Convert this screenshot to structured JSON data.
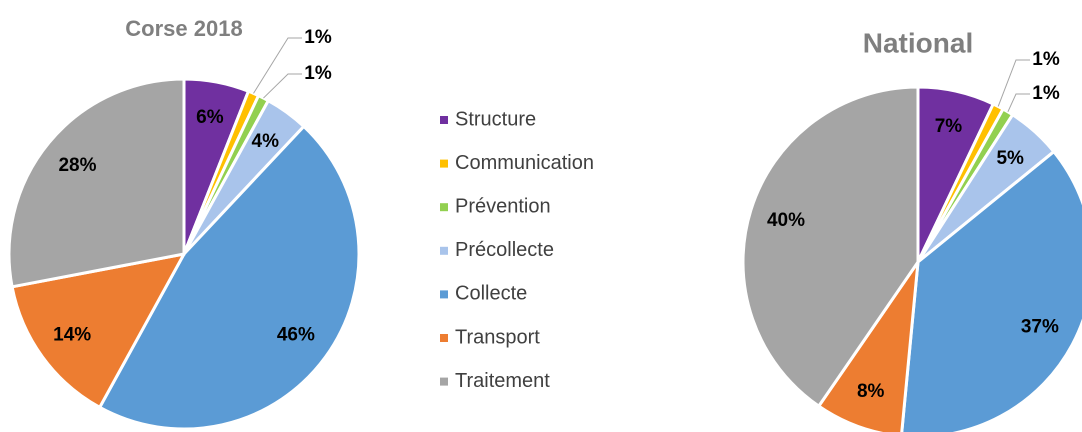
{
  "chart_data": [
    {
      "type": "pie",
      "title": "Corse 2018",
      "categories": [
        "Structure",
        "Communication",
        "Prévention",
        "Précollecte",
        "Collecte",
        "Transport",
        "Traitement"
      ],
      "values": [
        6,
        1,
        1,
        4,
        46,
        14,
        28
      ],
      "value_labels": [
        "6%",
        "1%",
        "1%",
        "4%",
        "46%",
        "14%",
        "28%"
      ],
      "colors": [
        "#7030a0",
        "#ffc000",
        "#92d050",
        "#a9c4eb",
        "#5b9bd5",
        "#ed7d31",
        "#a5a5a5"
      ],
      "legend": "center"
    },
    {
      "type": "pie",
      "title": "National",
      "categories": [
        "Structure",
        "Communication",
        "Prévention",
        "Précollecte",
        "Collecte",
        "Transport",
        "Traitement"
      ],
      "values": [
        7,
        1,
        1,
        5,
        37,
        8,
        40
      ],
      "value_labels": [
        "7%",
        "1%",
        "1%",
        "5%",
        "37%",
        "8%",
        "40%"
      ],
      "colors": [
        "#7030a0",
        "#ffc000",
        "#92d050",
        "#a9c4eb",
        "#5b9bd5",
        "#ed7d31",
        "#a5a5a5"
      ]
    }
  ]
}
